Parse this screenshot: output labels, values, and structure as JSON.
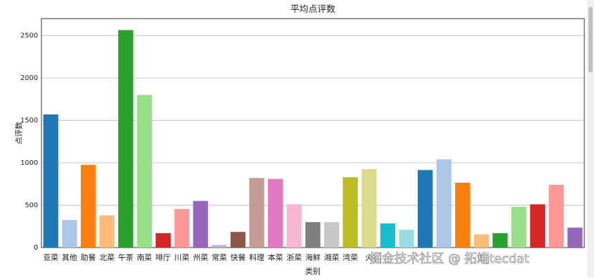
{
  "chart_data": {
    "type": "bar",
    "title": "平均点评数",
    "x_label": "类别",
    "y_label": "点评数",
    "categories": [
      "亚菜",
      "其他",
      "助餐",
      "北菜",
      "午茶",
      "南菜",
      "啡厅",
      "川菜",
      "州菜",
      "常菜",
      "快餐",
      "料理",
      "本菜",
      "浙菜",
      "海鲜",
      "湘菜",
      "湾菜",
      "火",
      null,
      null,
      null,
      null,
      null,
      null,
      null,
      null,
      null,
      null,
      null
    ],
    "values": [
      1570,
      325,
      975,
      380,
      2565,
      1800,
      170,
      455,
      550,
      30,
      185,
      820,
      810,
      510,
      300,
      300,
      830,
      925,
      285,
      210,
      915,
      1040,
      765,
      155,
      170,
      480,
      510,
      740,
      235
    ],
    "colors": [
      "#1f77b4",
      "#aec7e8",
      "#ff7f0e",
      "#ffbb78",
      "#2ca02c",
      "#98df8a",
      "#d62728",
      "#ff9896",
      "#9467bd",
      "#c5b0d5",
      "#8c564b",
      "#c49c94",
      "#e377c2",
      "#f7b6d2",
      "#7f7f7f",
      "#c7c7c7",
      "#bcbd22",
      "#dbdb8d",
      "#17becf",
      "#9edae5",
      "#1f77b4",
      "#aec7e8",
      "#ff7f0e",
      "#ffbb78",
      "#2ca02c",
      "#98df8a",
      "#d62728",
      "#ff9896",
      "#9467bd"
    ],
    "ylim": [
      0,
      2700
    ],
    "yticks": [
      0,
      500,
      1000,
      1500,
      2000,
      2500
    ],
    "grid": true,
    "watermark": "掘金技术社区 @ 拓端tecdat"
  }
}
